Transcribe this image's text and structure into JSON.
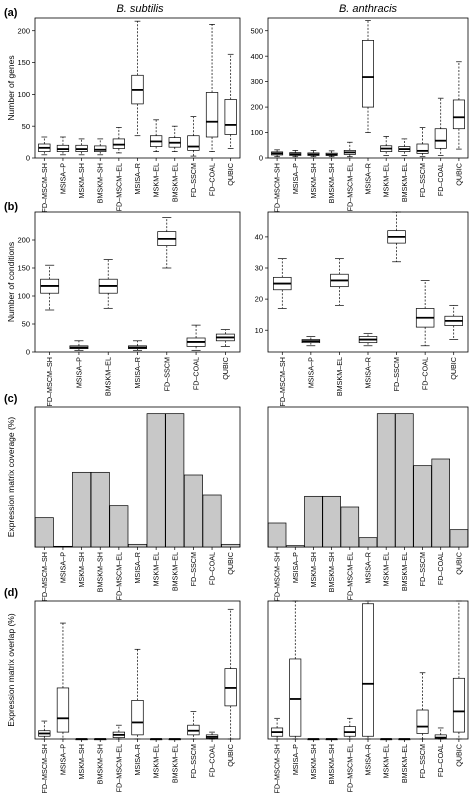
{
  "column_titles": [
    "B. subtilis",
    "B. anthracis"
  ],
  "panel_labels": [
    "(a)",
    "(b)",
    "(c)",
    "(d)"
  ],
  "chart_data": [
    {
      "panel": "(a)",
      "species": "B. subtilis",
      "type": "boxplot",
      "ylabel": "Number of genes",
      "ylim": [
        0,
        220
      ],
      "yticks": [
        0,
        50,
        100,
        150,
        200
      ],
      "categories": [
        "FD–MSCM–SH",
        "MSISA–P",
        "MSKM–SH",
        "BMSKM–SH",
        "FD–MSCM–EL",
        "MSISA–R",
        "MSKM–EL",
        "BMSKM–EL",
        "FD–SSCM",
        "FD–COAL",
        "QUBIC"
      ],
      "boxes": [
        {
          "min": 5,
          "q1": 10,
          "median": 16,
          "q3": 22,
          "max": 33
        },
        {
          "min": 5,
          "q1": 10,
          "median": 14,
          "q3": 20,
          "max": 33
        },
        {
          "min": 5,
          "q1": 10,
          "median": 14,
          "q3": 20,
          "max": 30
        },
        {
          "min": 5,
          "q1": 10,
          "median": 13,
          "q3": 19,
          "max": 30
        },
        {
          "min": 8,
          "q1": 15,
          "median": 21,
          "q3": 30,
          "max": 48
        },
        {
          "min": 35,
          "q1": 85,
          "median": 107,
          "q3": 130,
          "max": 215
        },
        {
          "min": 10,
          "q1": 18,
          "median": 26,
          "q3": 35,
          "max": 60
        },
        {
          "min": 10,
          "q1": 17,
          "median": 24,
          "q3": 32,
          "max": 50
        },
        {
          "min": 3,
          "q1": 12,
          "median": 18,
          "q3": 35,
          "max": 65
        },
        {
          "min": 10,
          "q1": 33,
          "median": 57,
          "q3": 103,
          "max": 210
        },
        {
          "min": 15,
          "q1": 37,
          "median": 52,
          "q3": 92,
          "max": 163
        }
      ]
    },
    {
      "panel": "(a)",
      "species": "B. anthracis",
      "type": "boxplot",
      "ylabel": "",
      "ylim": [
        0,
        550
      ],
      "yticks": [
        0,
        100,
        200,
        300,
        400,
        500
      ],
      "categories": [
        "FD–MSCM–SH",
        "MSISA–P",
        "MSKM–SH",
        "BMSKM–SH",
        "FD–MSCM–EL",
        "MSISA–R",
        "MSKM–EL",
        "BMSKM–EL",
        "FD–SSCM",
        "FD–COAL",
        "QUBIC"
      ],
      "boxes": [
        {
          "min": 5,
          "q1": 12,
          "median": 18,
          "q3": 24,
          "max": 32
        },
        {
          "min": 5,
          "q1": 10,
          "median": 15,
          "q3": 21,
          "max": 30
        },
        {
          "min": 5,
          "q1": 10,
          "median": 14,
          "q3": 20,
          "max": 30
        },
        {
          "min": 5,
          "q1": 10,
          "median": 13,
          "q3": 19,
          "max": 28
        },
        {
          "min": 5,
          "q1": 14,
          "median": 22,
          "q3": 30,
          "max": 62
        },
        {
          "min": 100,
          "q1": 200,
          "median": 318,
          "q3": 462,
          "max": 540
        },
        {
          "min": 10,
          "q1": 25,
          "median": 37,
          "q3": 48,
          "max": 85
        },
        {
          "min": 10,
          "q1": 25,
          "median": 35,
          "q3": 45,
          "max": 75
        },
        {
          "min": 5,
          "q1": 18,
          "median": 28,
          "q3": 55,
          "max": 120
        },
        {
          "min": 10,
          "q1": 38,
          "median": 68,
          "q3": 115,
          "max": 235
        },
        {
          "min": 35,
          "q1": 115,
          "median": 160,
          "q3": 228,
          "max": 378
        }
      ]
    },
    {
      "panel": "(b)",
      "species": "B. subtilis",
      "type": "boxplot",
      "ylabel": "Number of conditions",
      "ylim": [
        0,
        250
      ],
      "yticks": [
        0,
        50,
        100,
        150,
        200
      ],
      "categories": [
        "FD–MSCM–SH",
        "MSISA–P",
        "BMSKM–EL",
        "MSISA–R",
        "FD–SSCM",
        "FD–COAL",
        "QUBIC"
      ],
      "boxes": [
        {
          "min": 75,
          "q1": 105,
          "median": 118,
          "q3": 130,
          "max": 155
        },
        {
          "min": 3,
          "q1": 6,
          "median": 8,
          "q3": 11,
          "max": 20
        },
        {
          "min": 78,
          "q1": 105,
          "median": 118,
          "q3": 130,
          "max": 165
        },
        {
          "min": 3,
          "q1": 6,
          "median": 8,
          "q3": 11,
          "max": 20
        },
        {
          "min": 150,
          "q1": 190,
          "median": 202,
          "q3": 215,
          "max": 240
        },
        {
          "min": 3,
          "q1": 10,
          "median": 18,
          "q3": 25,
          "max": 48
        },
        {
          "min": 10,
          "q1": 20,
          "median": 26,
          "q3": 32,
          "max": 40
        }
      ]
    },
    {
      "panel": "(b)",
      "species": "B. anthracis",
      "type": "boxplot",
      "ylabel": "",
      "ylim": [
        3,
        48
      ],
      "yticks": [
        10,
        20,
        30,
        40
      ],
      "categories": [
        "FD–MSCM–SH",
        "MSISA–P",
        "BMSKM–EL",
        "MSISA–R",
        "FD–SSCM",
        "FD–COAL",
        "QUBIC"
      ],
      "boxes": [
        {
          "min": 17,
          "q1": 23,
          "median": 25,
          "q3": 27,
          "max": 33
        },
        {
          "min": 5,
          "q1": 6,
          "median": 6.5,
          "q3": 7,
          "max": 8
        },
        {
          "min": 18,
          "q1": 24,
          "median": 26,
          "q3": 28,
          "max": 33
        },
        {
          "min": 5,
          "q1": 6,
          "median": 7,
          "q3": 8,
          "max": 9
        },
        {
          "min": 32,
          "q1": 38,
          "median": 40,
          "q3": 42,
          "max": 48
        },
        {
          "min": 5,
          "q1": 11,
          "median": 14,
          "q3": 17,
          "max": 26
        },
        {
          "min": 7,
          "q1": 11.5,
          "median": 13,
          "q3": 14.5,
          "max": 18
        }
      ]
    },
    {
      "panel": "(c)",
      "species": "B. subtilis",
      "type": "bar",
      "ylabel": "Expression matrix coverage (%)",
      "ylim": [
        0,
        1.05
      ],
      "yticks": [],
      "categories": [
        "FD–MSCM–SH",
        "MSISA–P",
        "MSKM–SH",
        "BMSKM–SH",
        "FD–MSCM–EL",
        "MSISA–R",
        "MSKM–EL",
        "BMSKM–EL",
        "FD–SSCM",
        "FD–COAL",
        "QUBIC"
      ],
      "values": [
        0.22,
        0.005,
        0.56,
        0.56,
        0.31,
        0.02,
        1.0,
        1.0,
        0.54,
        0.39,
        0.02
      ]
    },
    {
      "panel": "(c)",
      "species": "B. anthracis",
      "type": "bar",
      "ylabel": "",
      "ylim": [
        0,
        1.05
      ],
      "yticks": [],
      "categories": [
        "FD–MSCM–SH",
        "MSISA–P",
        "MSKM–SH",
        "BMSKM–SH",
        "FD–MSCM–EL",
        "MSISA–R",
        "MSKM–EL",
        "BMSKM–EL",
        "FD–SSCM",
        "FD–COAL",
        "QUBIC"
      ],
      "values": [
        0.18,
        0.01,
        0.38,
        0.38,
        0.3,
        0.07,
        1.0,
        1.0,
        0.61,
        0.66,
        0.13
      ]
    },
    {
      "panel": "(d)",
      "species": "B. subtilis",
      "type": "boxplot",
      "ylabel": "Expression matrix overlap (%)",
      "ylim": [
        0,
        1.0
      ],
      "yticks": [],
      "categories": [
        "FD–MSCM–SH",
        "MSISA–P",
        "MSKM–SH",
        "BMSKM–SH",
        "IFD–MSCM–EL",
        "MSISA–R",
        "MSKM–EL",
        "BMSKM–EL",
        "FD–SSCM",
        "FD–COAL",
        "QUBIC"
      ],
      "boxes": [
        {
          "min": 0,
          "q1": 0.02,
          "median": 0.04,
          "q3": 0.06,
          "max": 0.13
        },
        {
          "min": 0,
          "q1": 0.05,
          "median": 0.15,
          "q3": 0.37,
          "max": 0.84
        },
        {
          "min": 0,
          "q1": 0,
          "median": 0,
          "q3": 0,
          "max": 0
        },
        {
          "min": 0,
          "q1": 0,
          "median": 0,
          "q3": 0,
          "max": 0
        },
        {
          "min": 0,
          "q1": 0.01,
          "median": 0.03,
          "q3": 0.05,
          "max": 0.1
        },
        {
          "min": 0,
          "q1": 0.03,
          "median": 0.12,
          "q3": 0.28,
          "max": 0.65
        },
        {
          "min": 0,
          "q1": 0,
          "median": 0,
          "q3": 0,
          "max": 0
        },
        {
          "min": 0,
          "q1": 0,
          "median": 0,
          "q3": 0,
          "max": 0
        },
        {
          "min": 0,
          "q1": 0.03,
          "median": 0.06,
          "q3": 0.1,
          "max": 0.2
        },
        {
          "min": 0,
          "q1": 0.005,
          "median": 0.015,
          "q3": 0.03,
          "max": 0.05
        },
        {
          "min": 0,
          "q1": 0.24,
          "median": 0.37,
          "q3": 0.51,
          "max": 0.94
        }
      ]
    },
    {
      "panel": "(d)",
      "species": "B. anthracis",
      "type": "boxplot",
      "ylabel": "",
      "ylim": [
        0,
        1.0
      ],
      "yticks": [],
      "categories": [
        "FD–MSCM–SH",
        "MSISA–P",
        "MSKM–SH",
        "BMSKM–SH",
        "FD–MSCM–EL",
        "MSISA–R",
        "MSKM–EL",
        "BMSKM–EL",
        "FD–SSCM",
        "FD–COAL",
        "QUBIC"
      ],
      "boxes": [
        {
          "min": 0,
          "q1": 0.02,
          "median": 0.05,
          "q3": 0.08,
          "max": 0.15
        },
        {
          "min": 0,
          "q1": 0.02,
          "median": 0.29,
          "q3": 0.58,
          "max": 1.0
        },
        {
          "min": 0,
          "q1": 0,
          "median": 0,
          "q3": 0,
          "max": 0
        },
        {
          "min": 0,
          "q1": 0,
          "median": 0,
          "q3": 0,
          "max": 0
        },
        {
          "min": 0,
          "q1": 0.02,
          "median": 0.05,
          "q3": 0.09,
          "max": 0.15
        },
        {
          "min": 0,
          "q1": 0.02,
          "median": 0.4,
          "q3": 0.98,
          "max": 1.0
        },
        {
          "min": 0,
          "q1": 0,
          "median": 0,
          "q3": 0,
          "max": 0
        },
        {
          "min": 0,
          "q1": 0,
          "median": 0,
          "q3": 0,
          "max": 0
        },
        {
          "min": 0,
          "q1": 0.04,
          "median": 0.09,
          "q3": 0.21,
          "max": 0.48
        },
        {
          "min": 0,
          "q1": 0.005,
          "median": 0.01,
          "q3": 0.03,
          "max": 0.08
        },
        {
          "min": 0,
          "q1": 0.05,
          "median": 0.2,
          "q3": 0.44,
          "max": 1.0
        }
      ]
    }
  ]
}
